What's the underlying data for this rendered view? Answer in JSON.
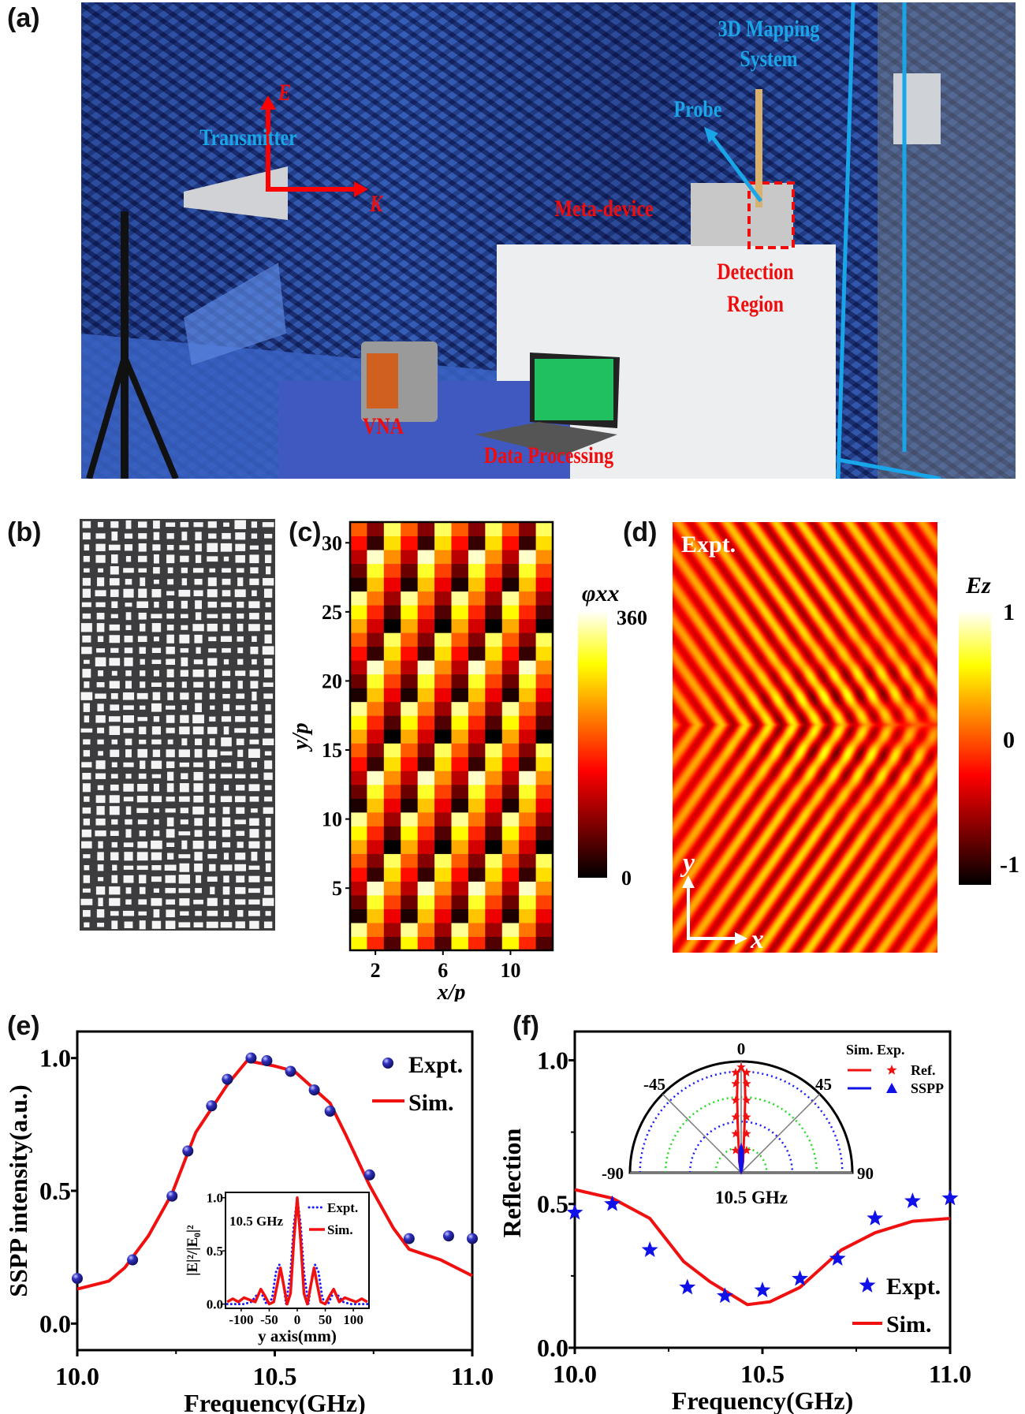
{
  "panel_labels": {
    "a": "(a)",
    "b": "(b)",
    "c": "(c)",
    "d": "(d)",
    "e": "(e)",
    "f": "(f)"
  },
  "photo": {
    "labels": {
      "mapping_line1": "3D Mapping",
      "mapping_line2": "System",
      "probe": "Probe",
      "transmitter": "Transmitter",
      "e_field": "E",
      "k_vector": "K",
      "meta_device": "Meta-device",
      "detection_line1": "Detection",
      "detection_line2": "Region",
      "vna": "VNA",
      "data_processing": "Data Processing"
    },
    "colors": {
      "label_cyan": "#19a6e8",
      "label_red": "#f00c0c",
      "anechoic_wall": "#2c4ea8"
    }
  },
  "chart_data": [
    {
      "id": "c",
      "type": "heatmap",
      "xlabel": "x/p",
      "ylabel": "y/p",
      "colorbar_label": "φxx",
      "colorbar_ticks": [
        "360",
        "0"
      ],
      "colorbar_range": [
        0,
        360
      ],
      "colormap": "hot",
      "columns": 12,
      "rows": 31,
      "xticks": [
        2,
        6,
        10
      ],
      "yticks": [
        5,
        10,
        15,
        20,
        25,
        30
      ],
      "xlim": [
        0.5,
        12.5
      ],
      "ylim": [
        0.5,
        31.5
      ],
      "phase_gradient_deg_per_cell": {
        "x": -120,
        "y": 45
      }
    },
    {
      "id": "d",
      "type": "heatmap",
      "annotation": "Expt.",
      "axis_labels": {
        "x": "x",
        "y": "y"
      },
      "colorbar_label": "Ez",
      "colorbar_ticks": [
        "1",
        "0",
        "-1"
      ],
      "colorbar_range": [
        -1,
        1
      ],
      "colormap": "hot"
    },
    {
      "id": "e",
      "type": "scatter+line",
      "xlabel": "Frequency(GHz)",
      "ylabel": "SSPP intensity(a.u.)",
      "xlim": [
        10.0,
        11.0
      ],
      "ylim": [
        -0.1,
        1.1
      ],
      "xticks": [
        "10.0",
        "10.5",
        "11.0"
      ],
      "xtick_values": [
        10.0,
        10.5,
        11.0
      ],
      "yticks": [
        "0.0",
        "0.5",
        "1.0"
      ],
      "ytick_values": [
        0.0,
        0.5,
        1.0
      ],
      "legend_position": "top-right",
      "series": [
        {
          "name": "Expt.",
          "kind": "scatter",
          "color": "#2a2ab8",
          "x": [
            10.0,
            10.14,
            10.24,
            10.28,
            10.34,
            10.38,
            10.44,
            10.48,
            10.54,
            10.6,
            10.64,
            10.74,
            10.84,
            10.94,
            11.0
          ],
          "y": [
            0.17,
            0.24,
            0.48,
            0.65,
            0.82,
            0.92,
            1.0,
            0.99,
            0.95,
            0.88,
            0.8,
            0.56,
            0.32,
            0.33,
            0.32
          ]
        },
        {
          "name": "Sim.",
          "kind": "line",
          "color": "#f01010",
          "x": [
            10.0,
            10.08,
            10.12,
            10.18,
            10.24,
            10.3,
            10.38,
            10.43,
            10.5,
            10.55,
            10.64,
            10.68,
            10.74,
            10.8,
            10.84,
            10.88,
            10.92,
            11.0
          ],
          "y": [
            0.13,
            0.16,
            0.21,
            0.33,
            0.49,
            0.72,
            0.9,
            0.99,
            0.97,
            0.95,
            0.83,
            0.71,
            0.52,
            0.36,
            0.28,
            0.26,
            0.24,
            0.18
          ]
        }
      ],
      "inset": {
        "type": "line",
        "annotation": "10.5 GHz",
        "xlabel": "y axis(mm)",
        "ylabel": "|E|²/|E₀|²",
        "xlim": [
          -128,
          128
        ],
        "ylim": [
          -0.04,
          1.05
        ],
        "xticks": [
          "-100",
          "-50",
          "0",
          "50",
          "100"
        ],
        "xtick_values": [
          -100,
          -50,
          0,
          50,
          100
        ],
        "yticks": [
          "0.0",
          "0.5",
          "1.0"
        ],
        "ytick_values": [
          0.0,
          0.5,
          1.0
        ],
        "series": [
          {
            "name": "Expt.",
            "style": "dotted",
            "color": "#1a1aff",
            "x": [
              -125,
              -110,
              -95,
              -82,
              -70,
              -62,
              -55,
              -45,
              -38,
              -32,
              -26,
              -20,
              -12,
              -6,
              0,
              6,
              12,
              20,
              26,
              32,
              38,
              45,
              55,
              62,
              70,
              82,
              95,
              110,
              125
            ],
            "y": [
              0.0,
              0.0,
              0.0,
              0.02,
              0.1,
              0.08,
              0.0,
              0.05,
              0.3,
              0.37,
              0.25,
              0.0,
              0.3,
              0.75,
              1.0,
              0.75,
              0.3,
              0.0,
              0.25,
              0.37,
              0.3,
              0.05,
              0.0,
              0.08,
              0.1,
              0.02,
              0.0,
              0.0,
              0.0
            ]
          },
          {
            "name": "Sim.",
            "style": "solid",
            "color": "#f01010",
            "x": [
              -125,
              -115,
              -105,
              -95,
              -85,
              -75,
              -65,
              -58,
              -50,
              -42,
              -35,
              -30,
              -25,
              -18,
              -12,
              -6,
              0,
              6,
              12,
              18,
              25,
              30,
              35,
              42,
              50,
              58,
              65,
              75,
              85,
              95,
              105,
              115,
              125
            ],
            "y": [
              0.02,
              0.05,
              0.02,
              0.06,
              0.04,
              0.02,
              0.14,
              0.08,
              0.0,
              0.02,
              0.2,
              0.34,
              0.2,
              0.0,
              0.1,
              0.6,
              1.0,
              0.6,
              0.1,
              0.0,
              0.2,
              0.34,
              0.2,
              0.02,
              0.0,
              0.08,
              0.14,
              0.02,
              0.06,
              0.04,
              0.02,
              0.05,
              0.02
            ]
          }
        ]
      }
    },
    {
      "id": "f",
      "type": "scatter+line",
      "xlabel": "Frequency(GHz)",
      "ylabel": "Reflection",
      "xlim": [
        10.0,
        11.0
      ],
      "ylim": [
        0.0,
        1.1
      ],
      "xticks": [
        "10.0",
        "10.5",
        "11.0"
      ],
      "xtick_values": [
        10.0,
        10.5,
        11.0
      ],
      "yticks": [
        "0.0",
        "0.5",
        "1.0"
      ],
      "ytick_values": [
        0.0,
        0.5,
        1.0
      ],
      "legend_position": "bottom-right",
      "series": [
        {
          "name": "Expt.",
          "kind": "scatter",
          "marker": "star",
          "color": "#1010e8",
          "x": [
            10.0,
            10.1,
            10.2,
            10.3,
            10.4,
            10.5,
            10.6,
            10.7,
            10.8,
            10.9,
            11.0
          ],
          "y": [
            0.47,
            0.5,
            0.34,
            0.21,
            0.18,
            0.2,
            0.24,
            0.31,
            0.45,
            0.51,
            0.52
          ]
        },
        {
          "name": "Sim.",
          "kind": "line",
          "color": "#f01010",
          "x": [
            10.0,
            10.1,
            10.2,
            10.29,
            10.36,
            10.46,
            10.52,
            10.6,
            10.71,
            10.8,
            10.9,
            11.0
          ],
          "y": [
            0.55,
            0.52,
            0.45,
            0.3,
            0.23,
            0.15,
            0.16,
            0.21,
            0.34,
            0.4,
            0.44,
            0.45
          ]
        }
      ],
      "inset": {
        "type": "polar",
        "annotation": "10.5 GHz",
        "angle_ticks": [
          "-90",
          "-45",
          "0",
          "45",
          "90"
        ],
        "angle_tick_values": [
          -90,
          -45,
          0,
          45,
          90
        ],
        "legend_header": "Sim. Exp.",
        "ring_fractions": [
          0.23,
          0.46,
          0.68,
          0.91
        ],
        "series": [
          {
            "name": "Ref.",
            "color": "#f01010",
            "exp_marker": "star",
            "angle": [
              -10,
              -6,
              -4,
              -3,
              -2,
              0,
              2,
              3,
              4,
              6,
              10
            ],
            "r": [
              0.1,
              0.2,
              0.45,
              0.7,
              0.9,
              0.95,
              0.9,
              0.7,
              0.45,
              0.2,
              0.1
            ]
          },
          {
            "name": "SSPP",
            "color": "#1010e8",
            "exp_marker": "triangle",
            "angle": [
              -20,
              -10,
              -5,
              0,
              5,
              10,
              20
            ],
            "r": [
              0.03,
              0.1,
              0.2,
              0.25,
              0.2,
              0.1,
              0.03
            ]
          }
        ]
      }
    }
  ]
}
